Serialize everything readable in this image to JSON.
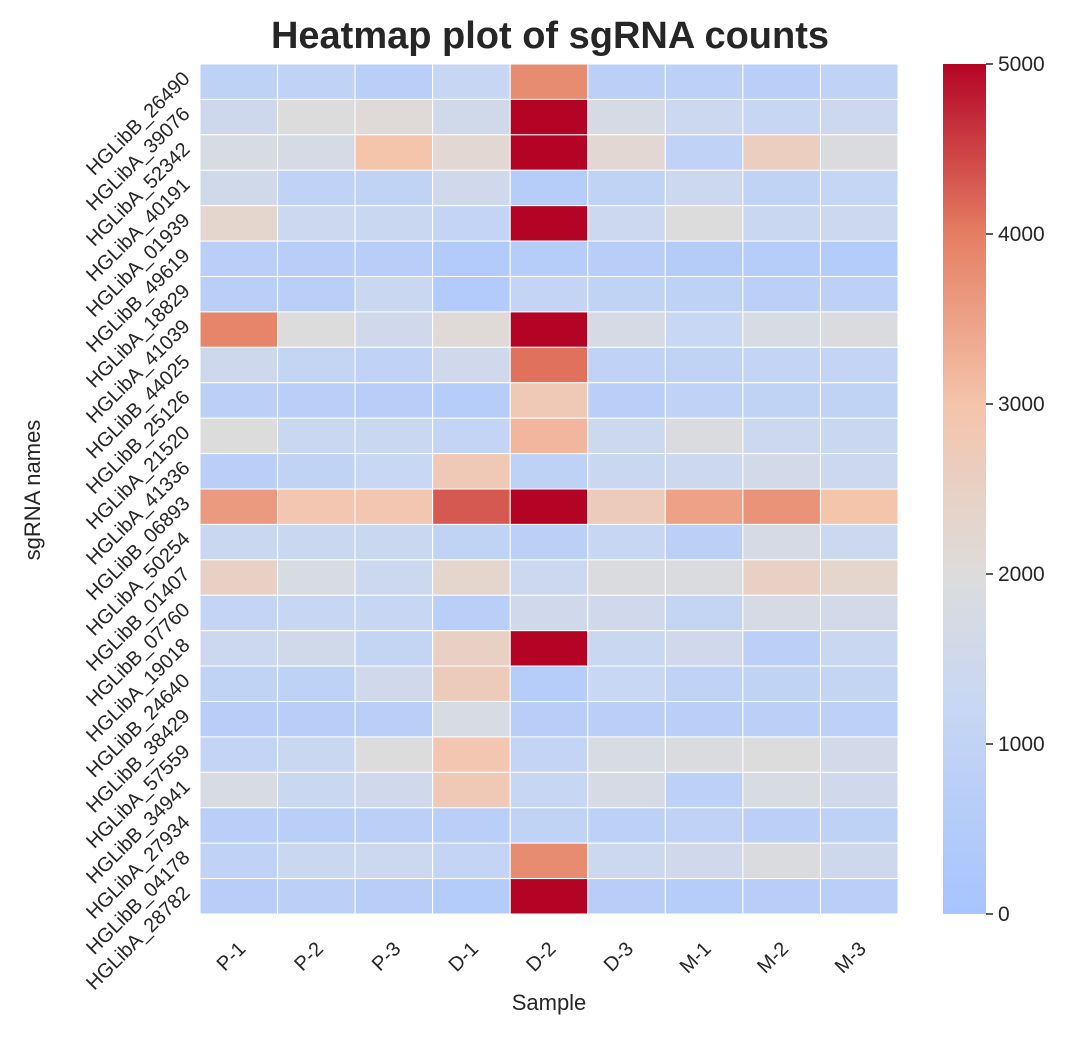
{
  "chart_data": {
    "type": "heatmap",
    "title": "Heatmap plot of sgRNA counts",
    "xlabel": "Sample",
    "ylabel": "sgRNA names",
    "x_categories": [
      "P-1",
      "P-2",
      "P-3",
      "D-1",
      "D-2",
      "D-3",
      "M-1",
      "M-2",
      "M-3"
    ],
    "y_categories": [
      "HGLibB_26490",
      "HGLibA_39076",
      "HGLibA_52342",
      "HGLibA_40191",
      "HGLibA_01939",
      "HGLibB_49619",
      "HGLibA_18829",
      "HGLibA_41039",
      "HGLibB_44025",
      "HGLibB_25126",
      "HGLibA_21520",
      "HGLibA_41336",
      "HGLibB_06893",
      "HGLibA_50254",
      "HGLibB_01407",
      "HGLibB_07760",
      "HGLibA_19018",
      "HGLibB_24640",
      "HGLibB_38429",
      "HGLibA_57559",
      "HGLibB_34941",
      "HGLibA_27934",
      "HGLibB_04178",
      "HGLibA_28782"
    ],
    "values": [
      [
        900,
        950,
        700,
        1200,
        3800,
        800,
        850,
        700,
        950
      ],
      [
        1450,
        2000,
        2100,
        1550,
        5000,
        1700,
        1350,
        1200,
        1400
      ],
      [
        1800,
        1700,
        3000,
        2200,
        5000,
        2200,
        950,
        2600,
        1900
      ],
      [
        1550,
        950,
        1000,
        1500,
        600,
        1000,
        1400,
        1000,
        1150
      ],
      [
        2300,
        1350,
        1300,
        1050,
        5000,
        1350,
        2000,
        1300,
        1350
      ],
      [
        700,
        650,
        650,
        450,
        600,
        650,
        550,
        600,
        500
      ],
      [
        700,
        750,
        1300,
        450,
        1050,
        1000,
        900,
        800,
        850
      ],
      [
        3900,
        2000,
        1500,
        2100,
        5000,
        1700,
        1250,
        1800,
        1900
      ],
      [
        1450,
        1100,
        950,
        1500,
        4100,
        950,
        1000,
        1050,
        1050
      ],
      [
        800,
        750,
        650,
        600,
        2800,
        700,
        950,
        1000,
        1000
      ],
      [
        2000,
        1300,
        1300,
        1050,
        3200,
        1400,
        1900,
        1400,
        1300
      ],
      [
        700,
        1000,
        1250,
        2800,
        900,
        1300,
        1400,
        1600,
        1400
      ],
      [
        3600,
        2900,
        2900,
        4300,
        5000,
        2700,
        3500,
        3700,
        3000
      ],
      [
        1300,
        1300,
        1300,
        1000,
        800,
        1200,
        800,
        1700,
        1350
      ],
      [
        2500,
        1800,
        1400,
        2300,
        1350,
        1900,
        1900,
        2500,
        2300
      ],
      [
        1050,
        1200,
        1200,
        700,
        1500,
        1500,
        1100,
        1700,
        1600
      ],
      [
        1350,
        1550,
        1100,
        2500,
        5000,
        1300,
        1500,
        800,
        1300
      ],
      [
        1000,
        900,
        1500,
        2700,
        600,
        1250,
        950,
        1000,
        1100
      ],
      [
        650,
        650,
        700,
        1800,
        650,
        700,
        750,
        800,
        850
      ],
      [
        1050,
        1300,
        2000,
        2900,
        1050,
        1800,
        1900,
        2000,
        1600
      ],
      [
        1800,
        1300,
        1500,
        2800,
        1200,
        1700,
        850,
        1800,
        1500
      ],
      [
        700,
        750,
        800,
        750,
        1000,
        850,
        950,
        800,
        900
      ],
      [
        950,
        1300,
        1350,
        1050,
        3800,
        1400,
        1500,
        1900,
        1450
      ],
      [
        650,
        800,
        650,
        500,
        5000,
        650,
        600,
        650,
        750
      ]
    ],
    "vmin": 0,
    "vmax": 5000,
    "colormap": "coolwarm",
    "colorbar_ticks": [
      0,
      1000,
      2000,
      3000,
      4000,
      5000
    ],
    "grid_line_color": "#ffffff"
  }
}
